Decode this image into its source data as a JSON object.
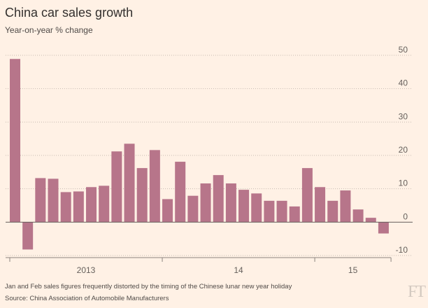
{
  "colors": {
    "background": "#fff1e5",
    "bar": "#b7758a",
    "gridline": "#c7bbb1",
    "zero_line": "#66605c",
    "axis": "#8c8580",
    "tick_text": "#66605c",
    "logo": "#d3c9c0"
  },
  "footer": {
    "note": "Jan and Feb sales figures frequently distorted by the timing of the Chinese lunar new year holiday",
    "source": "Source: China Association of Automobile Manufacturers"
  },
  "logo": {
    "text": "FT"
  },
  "chart_data": {
    "type": "bar",
    "title": "China car sales growth",
    "subtitle": "Year-on-year % change",
    "groups": [
      {
        "label": "2013",
        "values": [
          48.9,
          -8.2,
          13.2,
          13.0,
          9.0,
          9.2,
          10.5,
          10.9,
          21.2,
          23.5,
          16.2,
          21.6
        ]
      },
      {
        "label": "14",
        "values": [
          6.9,
          18.1,
          7.9,
          11.6,
          14.1,
          11.6,
          9.7,
          8.6,
          6.4,
          6.4,
          4.7,
          16.2
        ]
      },
      {
        "label": "15",
        "values": [
          10.5,
          6.4,
          9.5,
          3.8,
          1.3,
          -3.4
        ]
      }
    ],
    "ylim": [
      -10,
      50
    ],
    "y_ticks": [
      50,
      40,
      30,
      20,
      10,
      0,
      -10
    ],
    "y_tick_side": "right",
    "grid": true,
    "legend": "none"
  }
}
